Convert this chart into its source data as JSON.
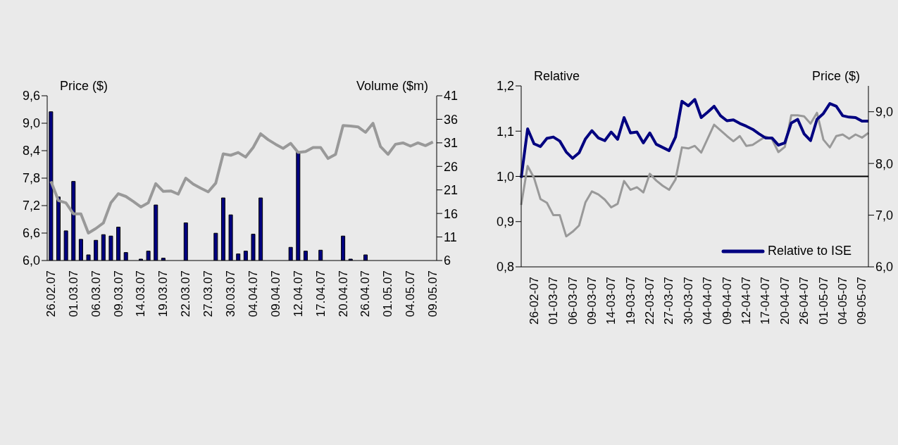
{
  "chart_data": [
    {
      "type": "bar",
      "ylabel": "Price ($)",
      "y2label": "Volume ($m)",
      "categories": [
        "26.02.07",
        null,
        null,
        "01.03.07",
        null,
        null,
        "06.03.07",
        null,
        null,
        "09.03.07",
        null,
        null,
        "14.03.07",
        null,
        null,
        "19.03.07",
        null,
        null,
        "22.03.07",
        null,
        null,
        "27.03.07",
        null,
        null,
        "30.03.07",
        null,
        null,
        "04.04.07",
        null,
        null,
        "09.04.07",
        null,
        null,
        "12.04.07",
        null,
        null,
        "17.04.07",
        null,
        null,
        "20.04.07",
        null,
        null,
        "26.04.07",
        null,
        null,
        "01.05.07",
        null,
        null,
        "04.05.07",
        null,
        null,
        "09.05.07"
      ],
      "series": [
        {
          "axis": "y2",
          "color": "#000080",
          "values": [
            37.6,
            19.5,
            12.3,
            22.8,
            10.5,
            7.2,
            10.3,
            11.5,
            11.2,
            13.1,
            7.7,
            null,
            6.3,
            8.0,
            17.8,
            6.5,
            null,
            null,
            14.0,
            null,
            null,
            null,
            11.8,
            19.3,
            15.7,
            7.4,
            8.0,
            11.6,
            19.3,
            null,
            null,
            null,
            8.8,
            29.0,
            8.0,
            null,
            8.2,
            null,
            null,
            11.2,
            6.3,
            null,
            7.2,
            null,
            null,
            null,
            null,
            null,
            null,
            null,
            null,
            null
          ]
        },
        {
          "type": "line",
          "axis": "y",
          "color": "#999999",
          "values": [
            7.73,
            7.31,
            7.26,
            7.02,
            7.02,
            6.6,
            6.7,
            6.82,
            7.26,
            7.46,
            7.4,
            7.29,
            7.17,
            7.26,
            7.68,
            7.51,
            7.52,
            7.45,
            7.8,
            7.67,
            7.58,
            7.5,
            7.69,
            8.33,
            8.3,
            8.36,
            8.26,
            8.47,
            8.77,
            8.64,
            8.54,
            8.45,
            8.56,
            8.36,
            8.38,
            8.47,
            8.47,
            8.23,
            8.32,
            8.95,
            8.94,
            8.92,
            8.8,
            9.0,
            8.49,
            8.32,
            8.54,
            8.57,
            8.5,
            8.57,
            8.51,
            8.59
          ]
        }
      ],
      "ylim": [
        6,
        9.6
      ],
      "yticks": [
        {
          "value": 6,
          "label": "6,0"
        },
        {
          "value": 6.6,
          "label": "6,6"
        },
        {
          "value": 7.2,
          "label": "7,2"
        },
        {
          "value": 7.8,
          "label": "7,8"
        },
        {
          "value": 8.4,
          "label": "8,4"
        },
        {
          "value": 9,
          "label": "9,0"
        },
        {
          "value": 9.6,
          "label": "9,6"
        }
      ],
      "y2lim": [
        6,
        41
      ],
      "y2ticks": [
        6,
        11,
        16,
        21,
        26,
        31,
        36,
        41
      ]
    },
    {
      "type": "line",
      "ylabel": "Relative",
      "y2label": "Price ($)",
      "categories": [
        null,
        null,
        "26-02-07",
        null,
        null,
        "01-03-07",
        null,
        null,
        "06-03-07",
        null,
        null,
        "09-03-07",
        null,
        null,
        "14-03-07",
        null,
        null,
        "19-03-07",
        null,
        null,
        "22-03-07",
        null,
        null,
        "27-03-07",
        null,
        null,
        "30-03-07",
        null,
        null,
        "04-04-07",
        null,
        null,
        "09-04-07",
        null,
        null,
        "12-04-07",
        null,
        null,
        "17-04-07",
        null,
        null,
        "20-04-07",
        null,
        null,
        "26-04-07",
        null,
        null,
        "01-05-07",
        null,
        null,
        "04-05-07",
        null,
        null,
        "09-05-07",
        null
      ],
      "series": [
        {
          "axis": "y2",
          "color": "#999999",
          "values": [
            7.2,
            7.95,
            7.72,
            7.31,
            7.24,
            7.0,
            7.0,
            6.59,
            6.68,
            6.8,
            7.25,
            7.46,
            7.4,
            7.3,
            7.15,
            7.22,
            7.66,
            7.49,
            7.54,
            7.44,
            7.8,
            7.67,
            7.57,
            7.49,
            7.69,
            8.31,
            8.29,
            8.34,
            8.21,
            8.48,
            8.75,
            8.64,
            8.53,
            8.43,
            8.53,
            8.34,
            8.36,
            8.44,
            8.52,
            8.47,
            8.22,
            8.32,
            8.93,
            8.93,
            8.91,
            8.77,
            8.98,
            8.46,
            8.31,
            8.53,
            8.56,
            8.48,
            8.56,
            8.5,
            8.59
          ]
        },
        {
          "name": "Relative to ISE",
          "axis": "y",
          "color": "#000080",
          "values": [
            0.997,
            1.105,
            1.072,
            1.066,
            1.084,
            1.087,
            1.078,
            1.054,
            1.04,
            1.052,
            1.083,
            1.101,
            1.085,
            1.079,
            1.098,
            1.082,
            1.13,
            1.096,
            1.098,
            1.074,
            1.096,
            1.071,
            1.064,
            1.057,
            1.087,
            1.166,
            1.156,
            1.17,
            1.13,
            1.142,
            1.155,
            1.134,
            1.123,
            1.125,
            1.117,
            1.111,
            1.104,
            1.094,
            1.085,
            1.085,
            1.069,
            1.074,
            1.118,
            1.126,
            1.094,
            1.079,
            1.126,
            1.139,
            1.161,
            1.155,
            1.134,
            1.131,
            1.13,
            1.122,
            1.122
          ]
        }
      ],
      "ylim": [
        0.8,
        1.2
      ],
      "yticks": [
        {
          "value": 0.8,
          "label": "0,8"
        },
        {
          "value": 0.9,
          "label": "0,9"
        },
        {
          "value": 1,
          "label": "1,0"
        },
        {
          "value": 1.1,
          "label": "1,1"
        },
        {
          "value": 1.2,
          "label": "1,2"
        }
      ],
      "y2lim": [
        6,
        9.5
      ],
      "y2ticks": [
        {
          "value": 6,
          "label": "6,0"
        },
        {
          "value": 7,
          "label": "7,0"
        },
        {
          "value": 8,
          "label": "8,0"
        },
        {
          "value": 9,
          "label": "9,0"
        }
      ],
      "ref_lines": [
        {
          "axis": "y",
          "value": 1.0,
          "color": "#000000"
        }
      ],
      "legend": "bottom right"
    }
  ]
}
